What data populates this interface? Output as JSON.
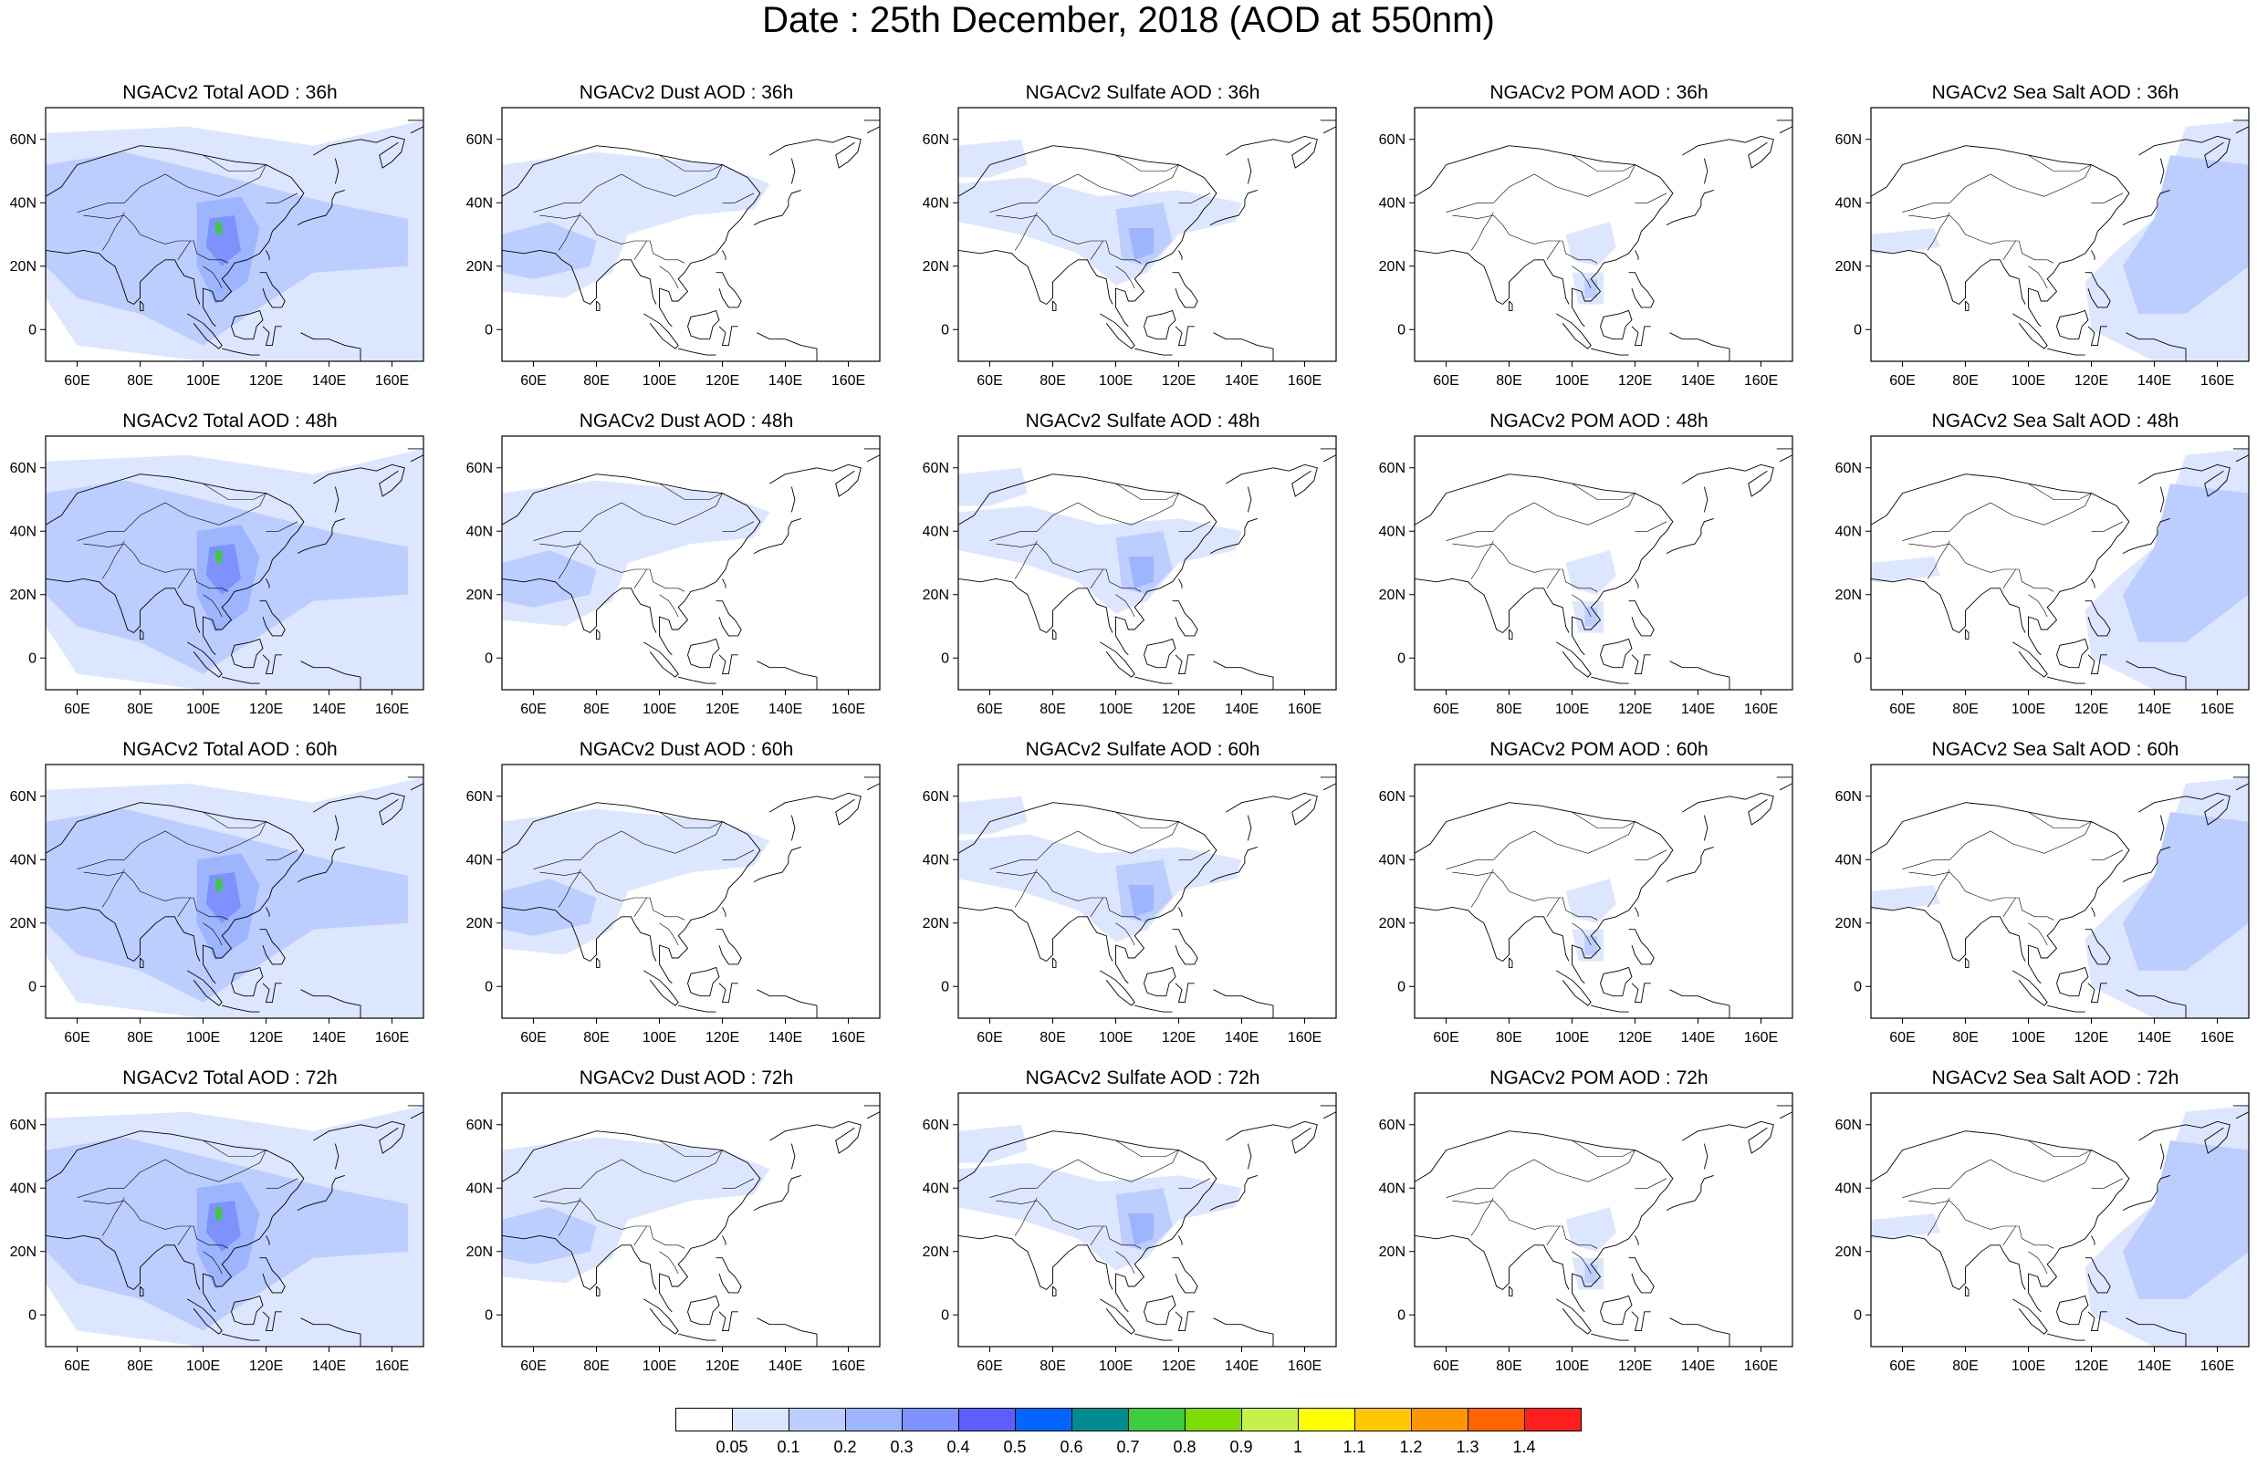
{
  "title": "Date : 25th December, 2018 (AOD at 550nm)",
  "lat_ticks": [
    {
      "value": 60,
      "label": "60N"
    },
    {
      "value": 40,
      "label": "40N"
    },
    {
      "value": 20,
      "label": "20N"
    },
    {
      "value": 0,
      "label": "0"
    }
  ],
  "lon_ticks": [
    {
      "value": 60,
      "label": "60E"
    },
    {
      "value": 80,
      "label": "80E"
    },
    {
      "value": 100,
      "label": "100E"
    },
    {
      "value": 120,
      "label": "120E"
    },
    {
      "value": 140,
      "label": "140E"
    },
    {
      "value": 160,
      "label": "160E"
    }
  ],
  "lon_range": [
    50,
    170
  ],
  "lat_range": [
    -10,
    70
  ],
  "panels": [
    {
      "title": "NGACv2 Total AOD : 36h",
      "species": "total"
    },
    {
      "title": "NGACv2 Dust AOD : 36h",
      "species": "dust"
    },
    {
      "title": "NGACv2 Sulfate AOD : 36h",
      "species": "sulfate"
    },
    {
      "title": "NGACv2 POM AOD : 36h",
      "species": "pom"
    },
    {
      "title": "NGACv2 Sea Salt AOD : 36h",
      "species": "seasalt"
    },
    {
      "title": "NGACv2 Total AOD : 48h",
      "species": "total"
    },
    {
      "title": "NGACv2 Dust AOD : 48h",
      "species": "dust"
    },
    {
      "title": "NGACv2 Sulfate AOD : 48h",
      "species": "sulfate"
    },
    {
      "title": "NGACv2 POM AOD : 48h",
      "species": "pom"
    },
    {
      "title": "NGACv2 Sea Salt AOD : 48h",
      "species": "seasalt"
    },
    {
      "title": "NGACv2 Total AOD : 60h",
      "species": "total"
    },
    {
      "title": "NGACv2 Dust AOD : 60h",
      "species": "dust"
    },
    {
      "title": "NGACv2 Sulfate AOD : 60h",
      "species": "sulfate"
    },
    {
      "title": "NGACv2 POM AOD : 60h",
      "species": "pom"
    },
    {
      "title": "NGACv2 Sea Salt AOD : 60h",
      "species": "seasalt"
    },
    {
      "title": "NGACv2 Total AOD : 72h",
      "species": "total"
    },
    {
      "title": "NGACv2 Dust AOD : 72h",
      "species": "dust"
    },
    {
      "title": "NGACv2 Sulfate AOD : 72h",
      "species": "sulfate"
    },
    {
      "title": "NGACv2 POM AOD : 72h",
      "species": "pom"
    },
    {
      "title": "NGACv2 Sea Salt  AOD : 72h",
      "species": "seasalt"
    }
  ],
  "colorbar": {
    "labels": [
      "0.05",
      "0.1",
      "0.2",
      "0.3",
      "0.4",
      "0.5",
      "0.6",
      "0.7",
      "0.8",
      "0.9",
      "1",
      "1.1",
      "1.2",
      "1.3",
      "1.4"
    ],
    "colors": [
      "#ffffff",
      "#dde6ff",
      "#bccdff",
      "#9db4ff",
      "#7d91ff",
      "#5e5eff",
      "#0066ff",
      "#008c8c",
      "#3ccc3c",
      "#7ddc00",
      "#c8f04a",
      "#ffff00",
      "#ffc800",
      "#ff9600",
      "#ff6400",
      "#ff1e1e"
    ]
  }
}
